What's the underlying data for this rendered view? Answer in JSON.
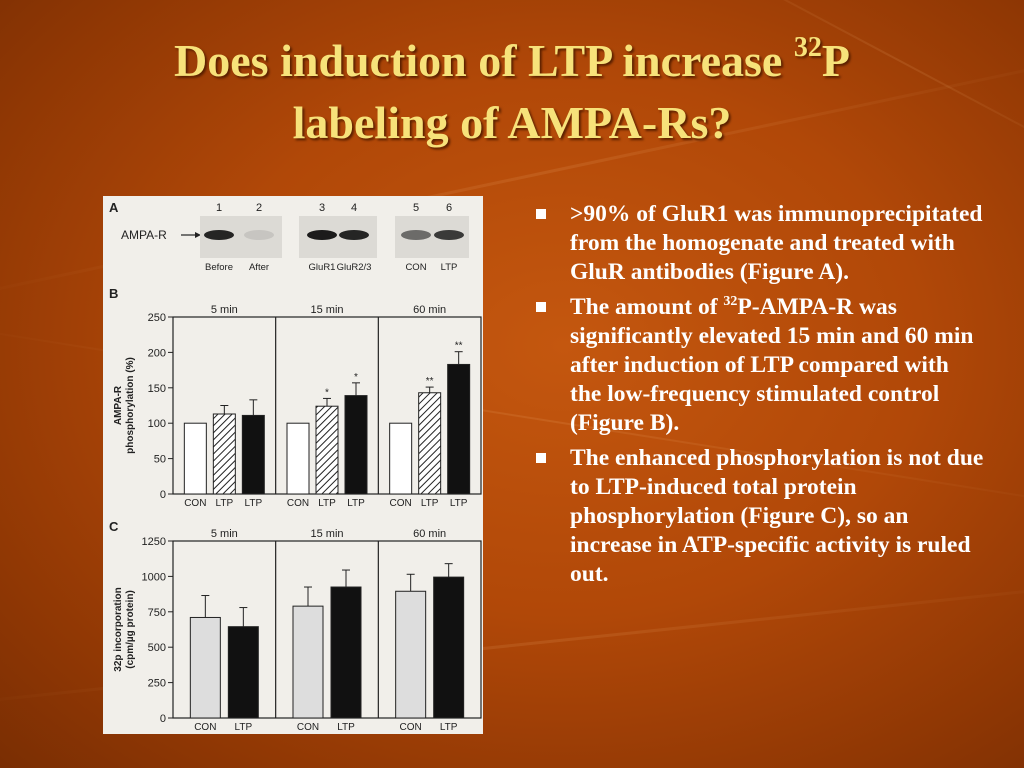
{
  "slide": {
    "title_part1": "Does induction of LTP increase ",
    "title_sup": "32",
    "title_part2": "P",
    "title_line2": "labeling of AMPA-Rs?"
  },
  "bullets": [
    {
      "text": ">90% of GluR1 was immunoprecipitated from the homogenate and treated with GluR antibodies (Figure A)."
    },
    {
      "pre": "The amount of ",
      "sup": "32",
      "post": "P-AMPA-R was significantly elevated 15 min and 60 min after induction of LTP compared with the low-frequency stimulated control (Figure B)."
    },
    {
      "text": "The enhanced phosphorylation is not due to LTP-induced total protein phosphorylation (Figure C), so an increase in ATP-specific activity is ruled out."
    }
  ],
  "figure": {
    "panel_a": {
      "letter": "A",
      "row_label": "AMPA-R",
      "lanes": [
        "1",
        "2",
        "3",
        "4",
        "5",
        "6"
      ],
      "lane_labels": [
        "Before",
        "After",
        "GluR1",
        "GluR2/3",
        "CON",
        "LTP"
      ],
      "band_intensity": [
        0.9,
        0.1,
        0.95,
        0.9,
        0.55,
        0.8
      ]
    }
  },
  "chart_data": [
    {
      "type": "bar",
      "panel": "B",
      "ylabel_line1": "AMPA-R",
      "ylabel_line2": "phosphorylation (%)",
      "ylim": [
        0,
        250
      ],
      "yticks": [
        0,
        50,
        100,
        150,
        200,
        250
      ],
      "groups": [
        {
          "label": "5 min",
          "categories": [
            "CON",
            "LTP",
            "LTP"
          ],
          "values": [
            100,
            113,
            111
          ],
          "errors": [
            0,
            12,
            22
          ],
          "significance": [
            "",
            "",
            ""
          ]
        },
        {
          "label": "15 min",
          "categories": [
            "CON",
            "LTP",
            "LTP"
          ],
          "values": [
            100,
            124,
            139
          ],
          "errors": [
            0,
            11,
            18
          ],
          "significance": [
            "",
            "*",
            "*"
          ]
        },
        {
          "label": "60 min",
          "categories": [
            "CON",
            "LTP",
            "LTP"
          ],
          "values": [
            100,
            143,
            183
          ],
          "errors": [
            0,
            8,
            18
          ],
          "significance": [
            "",
            "**",
            "**"
          ]
        }
      ],
      "bar_styles": [
        "white",
        "hatched",
        "black"
      ]
    },
    {
      "type": "bar",
      "panel": "C",
      "ylabel_line1": "32p incorporation",
      "ylabel_line2": "(cpm/µg protein)",
      "ylim": [
        0,
        1250
      ],
      "yticks": [
        0,
        250,
        500,
        750,
        1000,
        1250
      ],
      "groups": [
        {
          "label": "5 min",
          "categories": [
            "CON",
            "LTP"
          ],
          "values": [
            710,
            645
          ],
          "errors": [
            155,
            135
          ]
        },
        {
          "label": "15 min",
          "categories": [
            "CON",
            "LTP"
          ],
          "values": [
            790,
            925
          ],
          "errors": [
            135,
            120
          ]
        },
        {
          "label": "60 min",
          "categories": [
            "CON",
            "LTP"
          ],
          "values": [
            895,
            995
          ],
          "errors": [
            120,
            95
          ]
        }
      ],
      "bar_styles": [
        "light-gray",
        "black"
      ]
    }
  ]
}
